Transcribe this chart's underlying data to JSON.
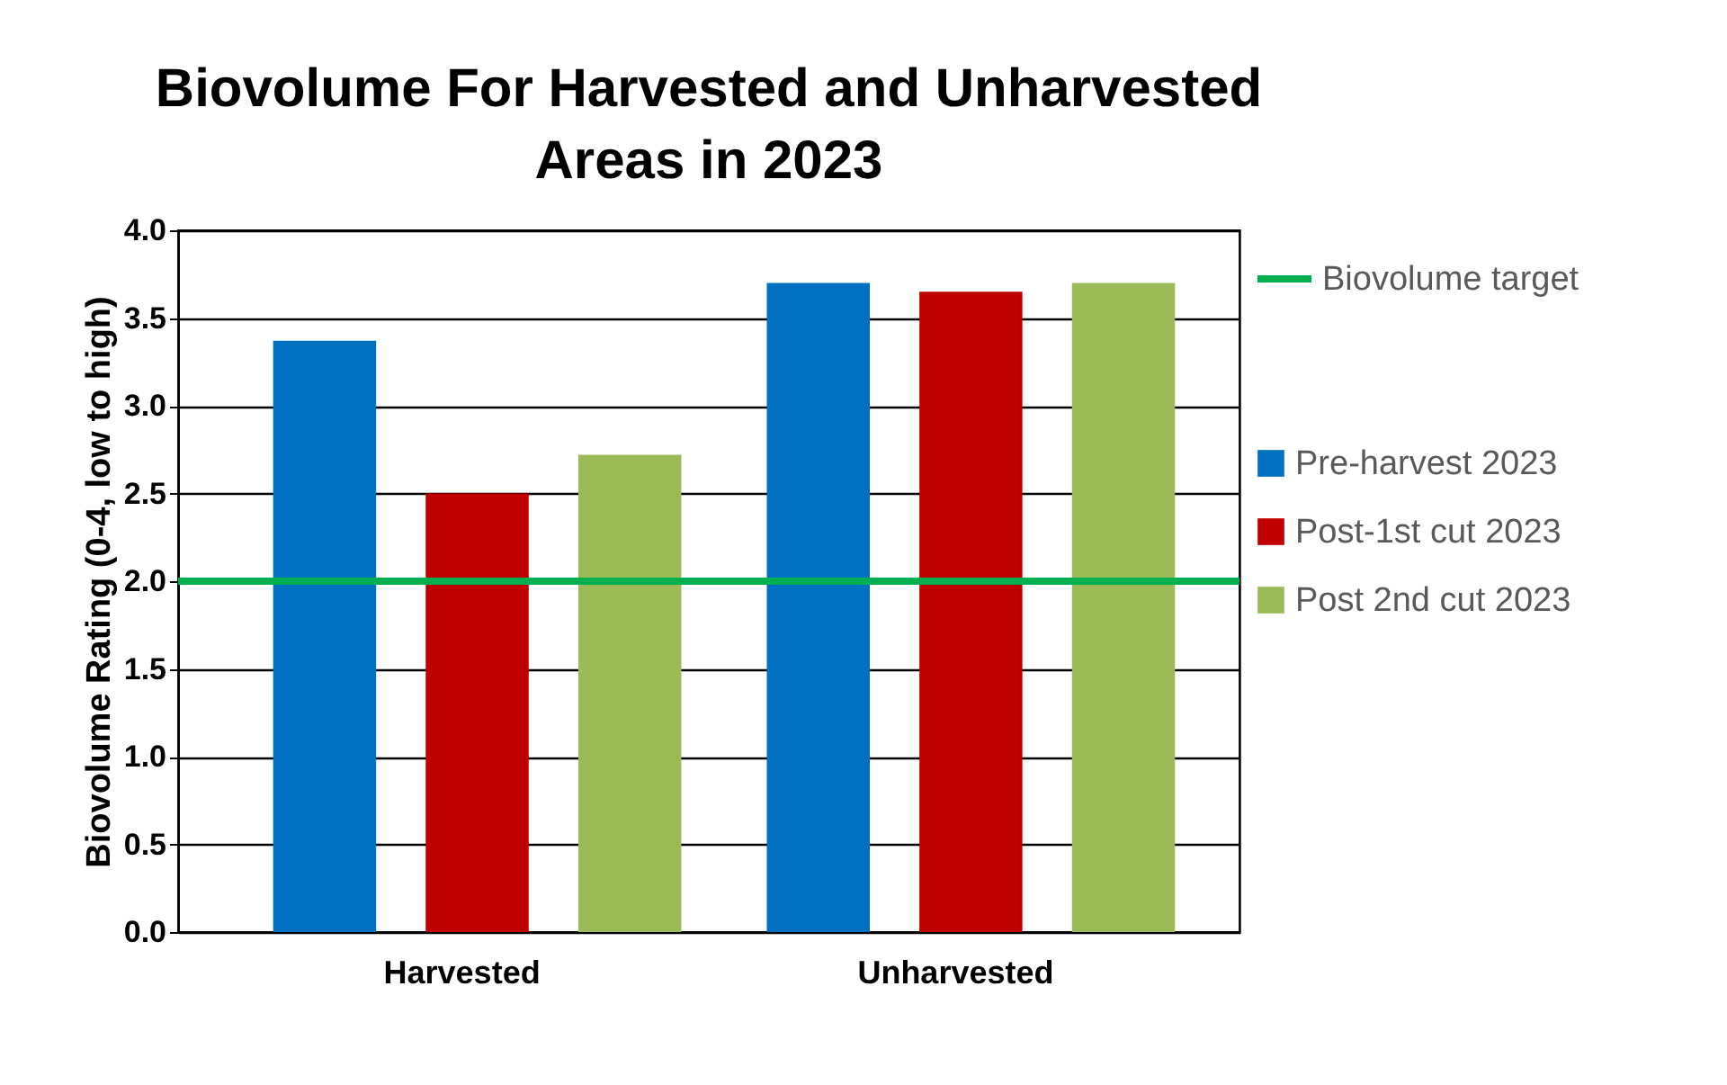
{
  "chart_data": {
    "type": "bar",
    "title": "Biovolume For Harvested and Unharvested Areas in 2023",
    "ylabel": "Biovolume Rating (0-4, low to high)",
    "categories": [
      "Harvested",
      "Unharvested"
    ],
    "series": [
      {
        "name": "Pre-harvest 2023",
        "color": "#0070c0",
        "values": [
          3.37,
          3.7
        ]
      },
      {
        "name": "Post-1st cut 2023",
        "color": "#c00000",
        "values": [
          2.5,
          3.65
        ]
      },
      {
        "name": "Post 2nd cut 2023",
        "color": "#9bbb59",
        "values": [
          2.72,
          3.7
        ]
      }
    ],
    "ylim": [
      0,
      4
    ],
    "yticks": [
      {
        "value": 0,
        "label": "0.0"
      },
      {
        "value": 0.5,
        "label": "0.5"
      },
      {
        "value": 1,
        "label": "1.0"
      },
      {
        "value": 1.5,
        "label": "1.5"
      },
      {
        "value": 2,
        "label": "2.0"
      },
      {
        "value": 2.5,
        "label": "2.5"
      },
      {
        "value": 3,
        "label": "3.0"
      },
      {
        "value": 3.5,
        "label": "3.5"
      },
      {
        "value": 4,
        "label": "4.0"
      }
    ],
    "ref_lines": [
      {
        "axis": "y",
        "value": 2,
        "label": "Biovolume target",
        "color": "#00b050"
      }
    ],
    "grid": "y",
    "legend": "right"
  }
}
